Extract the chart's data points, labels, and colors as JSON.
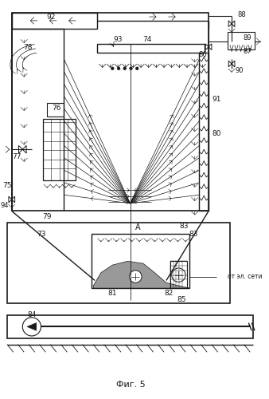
{
  "title": "Фиг. 5",
  "bg_color": "#ffffff",
  "line_color": "#1a1a1a",
  "figsize": [
    3.38,
    5.0
  ],
  "dpi": 100
}
